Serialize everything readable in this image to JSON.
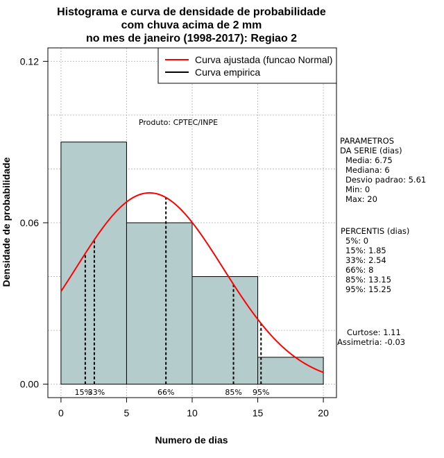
{
  "chart_data": {
    "type": "bar",
    "title_lines": [
      "Histograma e curva de densidade de probabilidade",
      "com chuva acima de 2 mm",
      "no mes de janeiro (1998-2017): Regiao 2"
    ],
    "xlabel": "Numero de dias",
    "ylabel": "Densidade de probabilidade",
    "xlim": [
      -1,
      21
    ],
    "ylim": [
      -0.005,
      0.125
    ],
    "x_ticks": [
      0,
      5,
      10,
      15,
      20
    ],
    "y_ticks": [
      0.0,
      0.06,
      0.12
    ],
    "y_tick_labels": [
      "0.00",
      "0.06",
      "0.12"
    ],
    "grid": true,
    "bin_edges": [
      0,
      5,
      10,
      15,
      20
    ],
    "densities": [
      0.09,
      0.06,
      0.04,
      0.01
    ],
    "bar_color": "#b5cccc",
    "normal_curve": {
      "mean": 6.75,
      "sd": 5.61,
      "color": "#ff0000"
    },
    "percentile_lines": [
      {
        "label": "15%",
        "x": 1.85
      },
      {
        "label": "33%",
        "x": 2.54
      },
      {
        "label": "66%",
        "x": 8
      },
      {
        "label": "85%",
        "x": 13.15
      },
      {
        "label": "95%",
        "x": 15.25
      }
    ],
    "legend": {
      "position": "top-right",
      "entries": [
        {
          "label": "Curva ajustada (funcao Normal)",
          "color": "#ff0000"
        },
        {
          "label": "Curva empirica",
          "color": "#000000"
        }
      ]
    },
    "annotation": "Produto: CPTEC/INPE"
  },
  "side_panel": {
    "parametros": [
      "PARAMETROS",
      "DA SERIE (dias)",
      "Media: 6.75",
      "Mediana: 6",
      "Desvio padrao: 5.61",
      "Min: 0",
      "Max: 20"
    ],
    "percentis": [
      "PERCENTIS (dias)",
      "5%: 0",
      "15%: 1.85",
      "33%: 2.54",
      "66%: 8",
      "85%: 13.15",
      "95%: 15.25"
    ],
    "forma": [
      "Curtose: 1.11",
      "Assimetria: -0.03"
    ]
  }
}
